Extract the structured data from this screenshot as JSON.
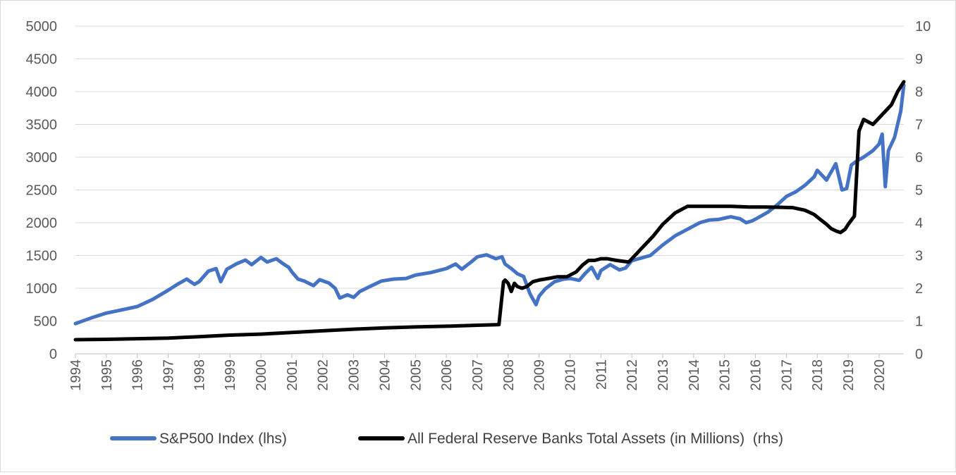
{
  "chart_data": {
    "type": "line",
    "title": "",
    "x_ticks": [
      "1994",
      "1995",
      "1996",
      "1997",
      "1998",
      "1999",
      "2000",
      "2001",
      "2002",
      "2003",
      "2004",
      "2005",
      "2006",
      "2007",
      "2008",
      "2009",
      "2010",
      "2011",
      "2012",
      "2013",
      "2014",
      "2015",
      "2016",
      "2017",
      "2018",
      "2019",
      "2020"
    ],
    "xlim": [
      1994,
      2020.8
    ],
    "ylim_left": [
      0,
      5000
    ],
    "ylim_right": [
      0,
      10
    ],
    "y_ticks_left": [
      "0",
      "500",
      "1000",
      "1500",
      "2000",
      "2500",
      "3000",
      "3500",
      "4000",
      "4500",
      "5000"
    ],
    "y_ticks_right": [
      "0",
      "1",
      "2",
      "3",
      "4",
      "5",
      "6",
      "7",
      "8",
      "9",
      "10"
    ],
    "grid": "horizontal",
    "legend_position": "bottom",
    "colors": {
      "sp500": "#4472c4",
      "fed": "#000000",
      "grid": "#d9d9d9"
    },
    "series": [
      {
        "name": "S&P500 Index (lhs)",
        "axis": "left",
        "x": [
          1994.0,
          1994.5,
          1995.0,
          1995.5,
          1996.0,
          1996.5,
          1997.0,
          1997.3,
          1997.6,
          1997.85,
          1998.0,
          1998.3,
          1998.55,
          1998.7,
          1998.9,
          1999.2,
          1999.5,
          1999.7,
          2000.0,
          2000.2,
          2000.5,
          2000.7,
          2000.9,
          2001.0,
          2001.2,
          2001.4,
          2001.7,
          2001.9,
          2002.2,
          2002.4,
          2002.55,
          2002.8,
          2003.0,
          2003.2,
          2003.5,
          2003.9,
          2004.3,
          2004.7,
          2005.0,
          2005.5,
          2006.0,
          2006.3,
          2006.5,
          2006.8,
          2007.0,
          2007.3,
          2007.6,
          2007.8,
          2007.9,
          2008.1,
          2008.3,
          2008.5,
          2008.7,
          2008.9,
          2009.0,
          2009.2,
          2009.5,
          2009.8,
          2010.0,
          2010.3,
          2010.5,
          2010.7,
          2010.9,
          2011.0,
          2011.3,
          2011.6,
          2011.8,
          2012.0,
          2012.3,
          2012.6,
          2013.0,
          2013.4,
          2013.8,
          2014.2,
          2014.5,
          2014.8,
          2015.0,
          2015.2,
          2015.5,
          2015.7,
          2015.9,
          2016.1,
          2016.4,
          2016.7,
          2017.0,
          2017.3,
          2017.6,
          2017.9,
          2018.0,
          2018.1,
          2018.3,
          2018.6,
          2018.8,
          2018.95,
          2019.1,
          2019.3,
          2019.5,
          2019.8,
          2020.0,
          2020.1,
          2020.2,
          2020.3,
          2020.5,
          2020.7,
          2020.8
        ],
        "values": [
          460,
          545,
          620,
          670,
          720,
          830,
          970,
          1060,
          1140,
          1060,
          1100,
          1260,
          1300,
          1100,
          1290,
          1370,
          1430,
          1360,
          1470,
          1400,
          1450,
          1380,
          1320,
          1250,
          1140,
          1110,
          1040,
          1130,
          1080,
          1000,
          850,
          900,
          860,
          950,
          1020,
          1110,
          1140,
          1150,
          1200,
          1240,
          1300,
          1370,
          1290,
          1400,
          1480,
          1510,
          1450,
          1480,
          1370,
          1300,
          1220,
          1180,
          920,
          750,
          880,
          990,
          1100,
          1140,
          1150,
          1120,
          1230,
          1320,
          1150,
          1270,
          1360,
          1280,
          1310,
          1420,
          1460,
          1500,
          1660,
          1800,
          1900,
          2000,
          2040,
          2050,
          2070,
          2090,
          2060,
          2000,
          2030,
          2080,
          2160,
          2270,
          2400,
          2470,
          2570,
          2700,
          2800,
          2750,
          2650,
          2900,
          2500,
          2520,
          2880,
          2950,
          3000,
          3100,
          3200,
          3350,
          2550,
          3100,
          3300,
          3700,
          4100
        ]
      },
      {
        "name": "All Federal Reserve Banks Total Assets (in Millions)  (rhs)",
        "axis": "right",
        "x": [
          1994.0,
          1995.0,
          1996.0,
          1997.0,
          1998.0,
          1999.0,
          2000.0,
          2001.0,
          2002.0,
          2003.0,
          2004.0,
          2005.0,
          2006.0,
          2007.0,
          2007.7,
          2007.85,
          2007.9,
          2008.0,
          2008.1,
          2008.2,
          2008.3,
          2008.45,
          2008.6,
          2008.8,
          2009.0,
          2009.3,
          2009.6,
          2009.9,
          2010.2,
          2010.4,
          2010.6,
          2010.8,
          2011.0,
          2011.2,
          2011.5,
          2011.9,
          2012.3,
          2012.7,
          2013.0,
          2013.4,
          2013.8,
          2014.0,
          2014.3,
          2014.8,
          2015.2,
          2015.8,
          2016.3,
          2016.8,
          2017.2,
          2017.6,
          2017.9,
          2018.1,
          2018.3,
          2018.45,
          2018.6,
          2018.75,
          2018.9,
          2019.0,
          2019.08,
          2019.12,
          2019.2,
          2019.35,
          2019.5,
          2019.8,
          2020.1,
          2020.4,
          2020.6,
          2020.8
        ],
        "values": [
          0.43,
          0.44,
          0.46,
          0.48,
          0.52,
          0.57,
          0.6,
          0.65,
          0.7,
          0.75,
          0.79,
          0.82,
          0.84,
          0.87,
          0.89,
          2.2,
          2.25,
          2.15,
          1.9,
          2.15,
          2.05,
          2.0,
          2.05,
          2.2,
          2.25,
          2.3,
          2.35,
          2.35,
          2.5,
          2.7,
          2.85,
          2.85,
          2.9,
          2.9,
          2.85,
          2.8,
          3.2,
          3.6,
          3.95,
          4.3,
          4.5,
          4.5,
          4.5,
          4.5,
          4.5,
          4.48,
          4.48,
          4.47,
          4.46,
          4.38,
          4.25,
          4.1,
          3.95,
          3.82,
          3.75,
          3.7,
          3.8,
          3.95,
          4.05,
          4.1,
          4.2,
          6.8,
          7.15,
          7.0,
          7.3,
          7.6,
          8.0,
          8.3
        ]
      }
    ]
  }
}
